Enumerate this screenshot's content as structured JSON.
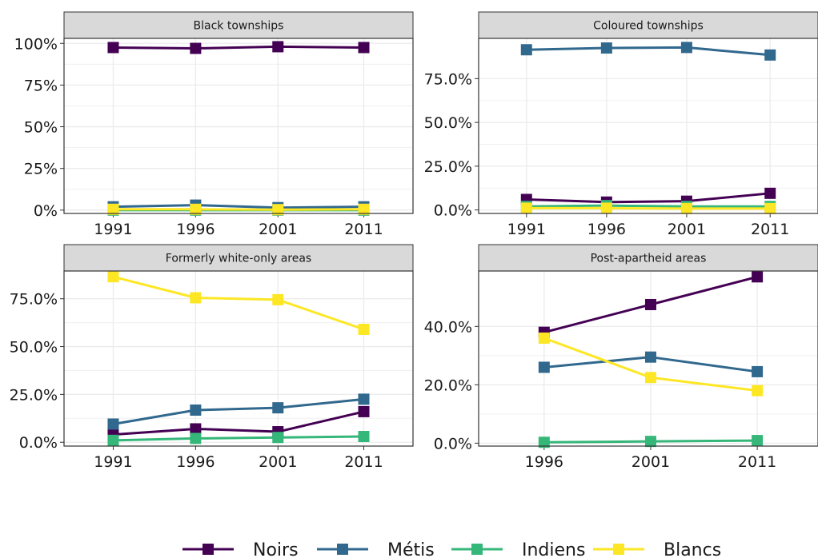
{
  "chart_data": {
    "type": "line",
    "legend": {
      "position": "bottom",
      "entries": [
        {
          "name": "Noirs",
          "color": "#440154"
        },
        {
          "name": "Métis",
          "color": "#31688E"
        },
        {
          "name": "Indiens",
          "color": "#35B779"
        },
        {
          "name": "Blancs",
          "color": "#FDE725"
        }
      ]
    },
    "panels": [
      {
        "title": "Black townships",
        "x": [
          "1991",
          "1996",
          "2001",
          "2011"
        ],
        "ylim": [
          -0.02,
          1.03
        ],
        "yticks": [
          0,
          0.25,
          0.5,
          0.75,
          1.0
        ],
        "ytick_labels": [
          "0%",
          "25%",
          "50%",
          "75%",
          "100%"
        ],
        "series": [
          {
            "name": "Noirs",
            "values": [
              0.975,
              0.97,
              0.98,
              0.975
            ]
          },
          {
            "name": "Métis",
            "values": [
              0.02,
              0.03,
              0.015,
              0.02
            ]
          },
          {
            "name": "Indiens",
            "values": [
              0.0,
              0.0,
              0.0,
              0.0
            ]
          },
          {
            "name": "Blancs",
            "values": [
              0.005,
              0.005,
              0.003,
              0.005
            ]
          }
        ]
      },
      {
        "title": "Coloured townships",
        "x": [
          "1991",
          "1996",
          "2001",
          "2011"
        ],
        "ylim": [
          -0.02,
          0.98
        ],
        "yticks": [
          0,
          0.25,
          0.5,
          0.75
        ],
        "ytick_labels": [
          "0.0%",
          "25.0%",
          "50.0%",
          "75.0%"
        ],
        "series": [
          {
            "name": "Noirs",
            "values": [
              0.06,
              0.045,
              0.05,
              0.095
            ]
          },
          {
            "name": "Métis",
            "values": [
              0.915,
              0.925,
              0.928,
              0.885
            ]
          },
          {
            "name": "Indiens",
            "values": [
              0.02,
              0.025,
              0.02,
              0.02
            ]
          },
          {
            "name": "Blancs",
            "values": [
              0.01,
              0.01,
              0.008,
              0.008
            ]
          }
        ]
      },
      {
        "title": "Formerly white-only areas",
        "x": [
          "1991",
          "1996",
          "2001",
          "2011"
        ],
        "ylim": [
          -0.02,
          0.895
        ],
        "yticks": [
          0,
          0.25,
          0.5,
          0.75
        ],
        "ytick_labels": [
          "0.0%",
          "25.0%",
          "50.0%",
          "75.0%"
        ],
        "series": [
          {
            "name": "Noirs",
            "values": [
              0.04,
              0.07,
              0.055,
              0.16
            ]
          },
          {
            "name": "Métis",
            "values": [
              0.095,
              0.168,
              0.18,
              0.225
            ]
          },
          {
            "name": "Indiens",
            "values": [
              0.01,
              0.02,
              0.025,
              0.03
            ]
          },
          {
            "name": "Blancs",
            "values": [
              0.865,
              0.755,
              0.745,
              0.59
            ]
          }
        ]
      },
      {
        "title": "Post-apartheid areas",
        "x": [
          "1996",
          "2001",
          "2011"
        ],
        "ylim": [
          -0.01,
          0.59
        ],
        "yticks": [
          0,
          0.2,
          0.4
        ],
        "ytick_labels": [
          "0.0%",
          "20.0%",
          "40.0%"
        ],
        "series": [
          {
            "name": "Noirs",
            "values": [
              0.38,
              0.475,
              0.57
            ]
          },
          {
            "name": "Métis",
            "values": [
              0.26,
              0.295,
              0.245
            ]
          },
          {
            "name": "Indiens",
            "values": [
              0.003,
              0.006,
              0.009
            ]
          },
          {
            "name": "Blancs",
            "values": [
              0.36,
              0.225,
              0.18
            ]
          }
        ]
      }
    ]
  }
}
